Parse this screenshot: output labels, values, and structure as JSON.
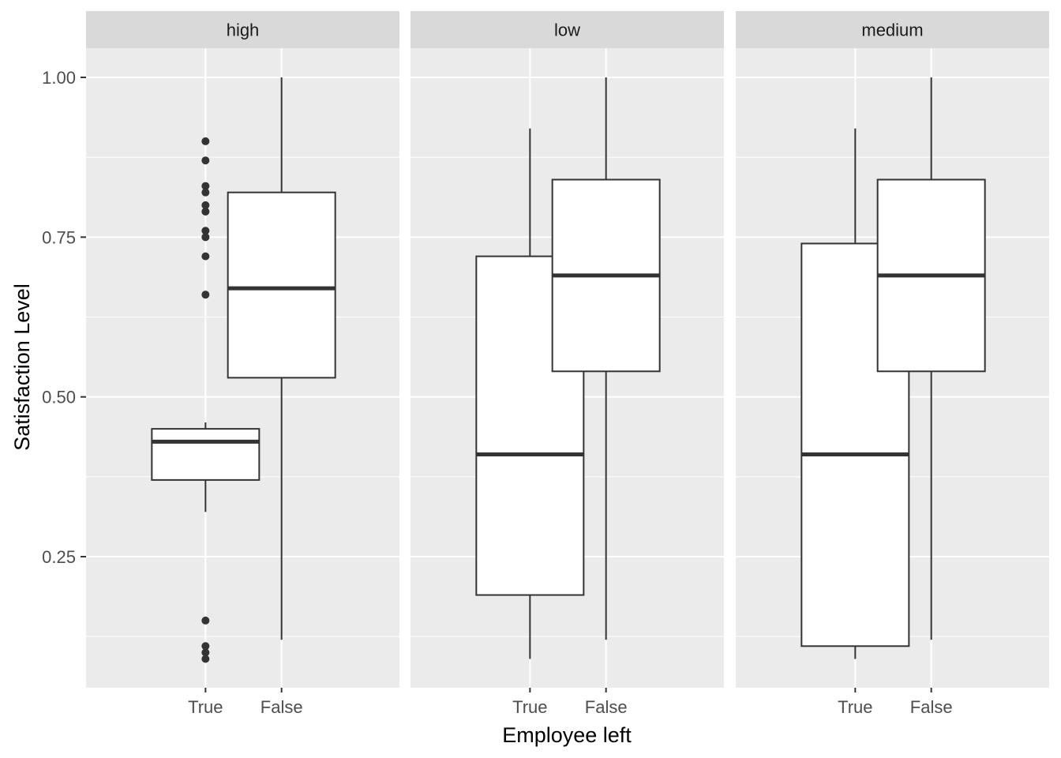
{
  "chart_data": {
    "type": "boxplot",
    "xlabel": "Employee left",
    "ylabel": "Satisfaction Level",
    "ylim": [
      0.09,
      1.0
    ],
    "y_ticks": [
      0.25,
      0.5,
      0.75,
      1.0
    ],
    "y_tick_labels": [
      "0.25",
      "0.50",
      "0.75",
      "1.00"
    ],
    "categories": [
      "True",
      "False"
    ],
    "grid": true,
    "colors": {
      "panel_bg": "#ebebeb",
      "strip_bg": "#d9d9d9",
      "grid": "#ffffff",
      "box_fill": "#ffffff",
      "box_line": "#333333"
    },
    "facets": [
      {
        "name": "high",
        "boxes": [
          {
            "category": "True",
            "min": 0.32,
            "q1": 0.37,
            "median": 0.43,
            "q3": 0.45,
            "max": 0.46,
            "outliers": [
              0.9,
              0.87,
              0.83,
              0.82,
              0.8,
              0.79,
              0.76,
              0.75,
              0.72,
              0.66,
              0.15,
              0.11,
              0.1,
              0.09
            ]
          },
          {
            "category": "False",
            "min": 0.12,
            "q1": 0.53,
            "median": 0.67,
            "q3": 0.82,
            "max": 1.0,
            "outliers": []
          }
        ]
      },
      {
        "name": "low",
        "boxes": [
          {
            "category": "True",
            "min": 0.09,
            "q1": 0.19,
            "median": 0.41,
            "q3": 0.72,
            "max": 0.92,
            "outliers": []
          },
          {
            "category": "False",
            "min": 0.12,
            "q1": 0.54,
            "median": 0.69,
            "q3": 0.84,
            "max": 1.0,
            "outliers": []
          }
        ]
      },
      {
        "name": "medium",
        "boxes": [
          {
            "category": "True",
            "min": 0.09,
            "q1": 0.11,
            "median": 0.41,
            "q3": 0.74,
            "max": 0.92,
            "outliers": []
          },
          {
            "category": "False",
            "min": 0.12,
            "q1": 0.54,
            "median": 0.69,
            "q3": 0.84,
            "max": 1.0,
            "outliers": []
          }
        ]
      }
    ]
  }
}
